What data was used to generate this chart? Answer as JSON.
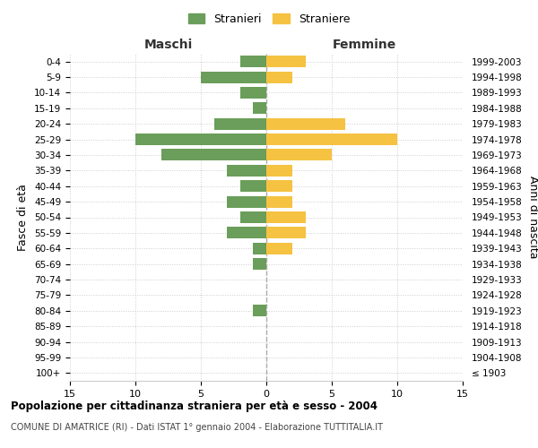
{
  "age_groups": [
    "100+",
    "95-99",
    "90-94",
    "85-89",
    "80-84",
    "75-79",
    "70-74",
    "65-69",
    "60-64",
    "55-59",
    "50-54",
    "45-49",
    "40-44",
    "35-39",
    "30-34",
    "25-29",
    "20-24",
    "15-19",
    "10-14",
    "5-9",
    "0-4"
  ],
  "birth_years": [
    "≤ 1903",
    "1904-1908",
    "1909-1913",
    "1914-1918",
    "1919-1923",
    "1924-1928",
    "1929-1933",
    "1934-1938",
    "1939-1943",
    "1944-1948",
    "1949-1953",
    "1954-1958",
    "1959-1963",
    "1964-1968",
    "1969-1973",
    "1974-1978",
    "1979-1983",
    "1984-1988",
    "1989-1993",
    "1994-1998",
    "1999-2003"
  ],
  "maschi": [
    0,
    0,
    0,
    0,
    1,
    0,
    0,
    1,
    1,
    3,
    2,
    3,
    2,
    3,
    8,
    10,
    4,
    1,
    2,
    5,
    2
  ],
  "femmine": [
    0,
    0,
    0,
    0,
    0,
    0,
    0,
    0,
    2,
    3,
    3,
    2,
    2,
    2,
    5,
    10,
    6,
    0,
    0,
    2,
    3
  ],
  "male_color": "#6a9e5a",
  "female_color": "#f5c242",
  "title": "Popolazione per cittadinanza straniera per età e sesso - 2004",
  "subtitle": "COMUNE DI AMATRICE (RI) - Dati ISTAT 1° gennaio 2004 - Elaborazione TUTTITALIA.IT",
  "legend_maschi": "Stranieri",
  "legend_femmine": "Straniere",
  "xlabel_left": "Maschi",
  "xlabel_right": "Femmine",
  "ylabel_left": "Fasce di età",
  "ylabel_right": "Anni di nascita",
  "xlim": 15,
  "bg_color": "#ffffff",
  "grid_color": "#cccccc"
}
